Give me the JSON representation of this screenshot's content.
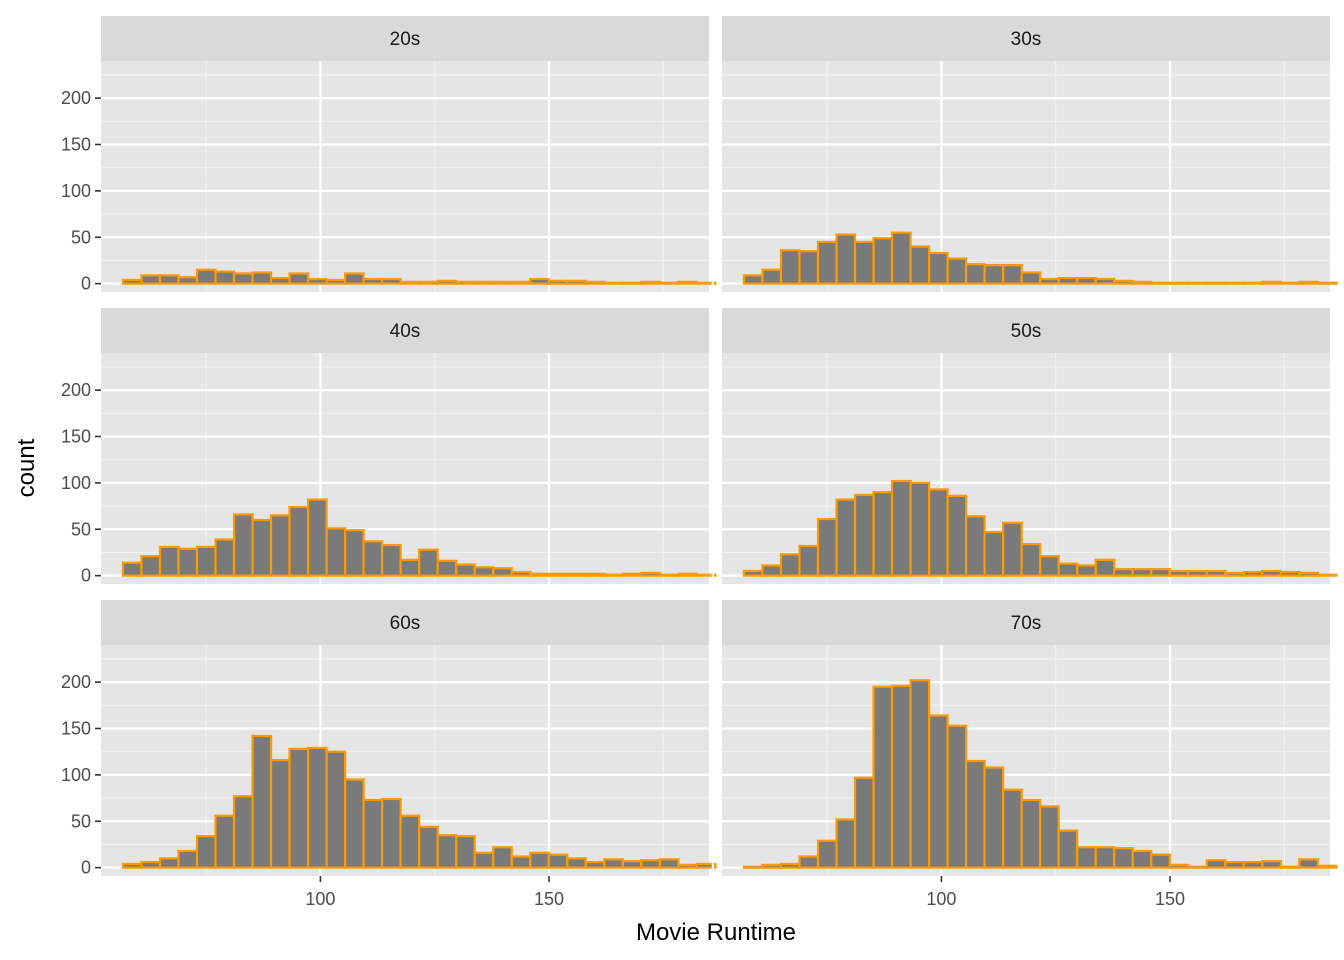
{
  "chart_data": {
    "type": "bar",
    "subtype": "faceted-histogram",
    "xlabel": "Movie Runtime",
    "ylabel": "count",
    "xlim": [
      52,
      185
    ],
    "ylim": [
      -9,
      240
    ],
    "x_ticks": [
      100,
      150
    ],
    "y_ticks": [
      0,
      50,
      100,
      150,
      200
    ],
    "grid": true,
    "bin_start": 56.8,
    "bin_width": 4.05,
    "colors": {
      "bar_fill": "#7a7a7a",
      "bar_outline": "#ff9900",
      "panel_bg": "#e5e5e5",
      "strip_bg": "#d9d9d9",
      "grid": "#ffffff"
    },
    "facets": [
      {
        "name": "20s",
        "values": [
          4,
          9,
          9,
          7,
          15,
          13,
          11,
          12,
          6,
          11,
          5,
          4,
          11,
          5,
          5,
          2,
          2,
          3,
          2,
          2,
          2,
          2,
          5,
          3,
          3,
          2,
          1,
          1,
          2,
          1,
          2,
          1
        ]
      },
      {
        "name": "30s",
        "values": [
          9,
          15,
          36,
          35,
          45,
          53,
          45,
          49,
          55,
          40,
          33,
          27,
          21,
          20,
          20,
          12,
          5,
          6,
          6,
          5,
          3,
          2,
          1,
          1,
          1,
          1,
          1,
          1,
          2,
          1,
          2,
          1
        ]
      },
      {
        "name": "40s",
        "values": [
          14,
          21,
          31,
          29,
          31,
          39,
          66,
          60,
          65,
          74,
          82,
          51,
          49,
          37,
          33,
          17,
          28,
          16,
          12,
          9,
          8,
          4,
          2,
          2,
          2,
          2,
          1,
          2,
          3,
          1,
          2,
          1
        ]
      },
      {
        "name": "50s",
        "values": [
          5,
          11,
          23,
          32,
          61,
          82,
          87,
          90,
          102,
          100,
          93,
          86,
          64,
          47,
          57,
          34,
          21,
          13,
          11,
          17,
          7,
          7,
          7,
          5,
          5,
          5,
          3,
          4,
          5,
          4,
          3,
          1
        ]
      },
      {
        "name": "60s",
        "values": [
          4,
          6,
          10,
          18,
          34,
          56,
          77,
          142,
          116,
          128,
          129,
          125,
          95,
          73,
          74,
          56,
          44,
          35,
          34,
          16,
          22,
          12,
          16,
          14,
          10,
          6,
          9,
          7,
          8,
          9,
          3,
          4
        ]
      },
      {
        "name": "70s",
        "values": [
          1,
          3,
          4,
          12,
          29,
          52,
          97,
          195,
          196,
          202,
          164,
          153,
          115,
          108,
          84,
          73,
          66,
          40,
          22,
          22,
          21,
          18,
          14,
          3,
          1,
          8,
          6,
          6,
          7,
          1,
          9,
          2
        ]
      }
    ]
  }
}
